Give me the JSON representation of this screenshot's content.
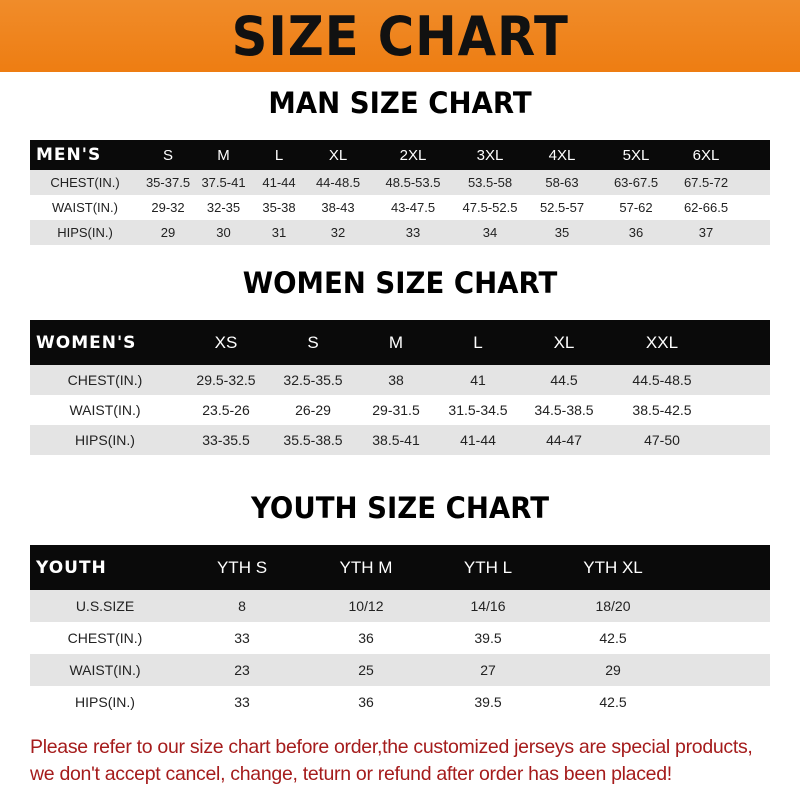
{
  "title": "SIZE CHART",
  "men": {
    "heading": "MAN SIZE CHART",
    "header": [
      "MEN'S",
      "S",
      "M",
      "L",
      "XL",
      "2XL",
      "3XL",
      "4XL",
      "5XL",
      "6XL"
    ],
    "rows": [
      [
        "CHEST(IN.)",
        "35-37.5",
        "37.5-41",
        "41-44",
        "44-48.5",
        "48.5-53.5",
        "53.5-58",
        "58-63",
        "63-67.5",
        "67.5-72"
      ],
      [
        "WAIST(IN.)",
        "29-32",
        "32-35",
        "35-38",
        "38-43",
        "43-47.5",
        "47.5-52.5",
        "52.5-57",
        "57-62",
        "62-66.5"
      ],
      [
        "HIPS(IN.)",
        "29",
        "30",
        "31",
        "32",
        "33",
        "34",
        "35",
        "36",
        "37"
      ]
    ]
  },
  "women": {
    "heading": "WOMEN SIZE CHART",
    "header": [
      "WOMEN'S",
      "XS",
      "S",
      "M",
      "L",
      "XL",
      "XXL"
    ],
    "rows": [
      [
        "CHEST(IN.)",
        "29.5-32.5",
        "32.5-35.5",
        "38",
        "41",
        "44.5",
        "44.5-48.5"
      ],
      [
        "WAIST(IN.)",
        "23.5-26",
        "26-29",
        "29-31.5",
        "31.5-34.5",
        "34.5-38.5",
        "38.5-42.5"
      ],
      [
        "HIPS(IN.)",
        "33-35.5",
        "35.5-38.5",
        "38.5-41",
        "41-44",
        "44-47",
        "47-50"
      ]
    ]
  },
  "youth": {
    "heading": "YOUTH SIZE CHART",
    "header": [
      "YOUTH",
      "YTH S",
      "YTH M",
      "YTH L",
      "YTH XL"
    ],
    "rows": [
      [
        "U.S.SIZE",
        "8",
        "10/12",
        "14/16",
        "18/20"
      ],
      [
        "CHEST(IN.)",
        "33",
        "36",
        "39.5",
        "42.5"
      ],
      [
        "WAIST(IN.)",
        "23",
        "25",
        "27",
        "29"
      ],
      [
        "HIPS(IN.)",
        "33",
        "36",
        "39.5",
        "42.5"
      ]
    ]
  },
  "footer": [
    "Please refer to our size chart before order,the customized jerseys are special products,",
    "we don't accept cancel, change, teturn or refund after order has been placed!"
  ],
  "colors": {
    "banner": "#ee7d12",
    "header_row": "#0a0a0a",
    "stripe": "#e4e4e4",
    "notice": "#a51c1c"
  }
}
